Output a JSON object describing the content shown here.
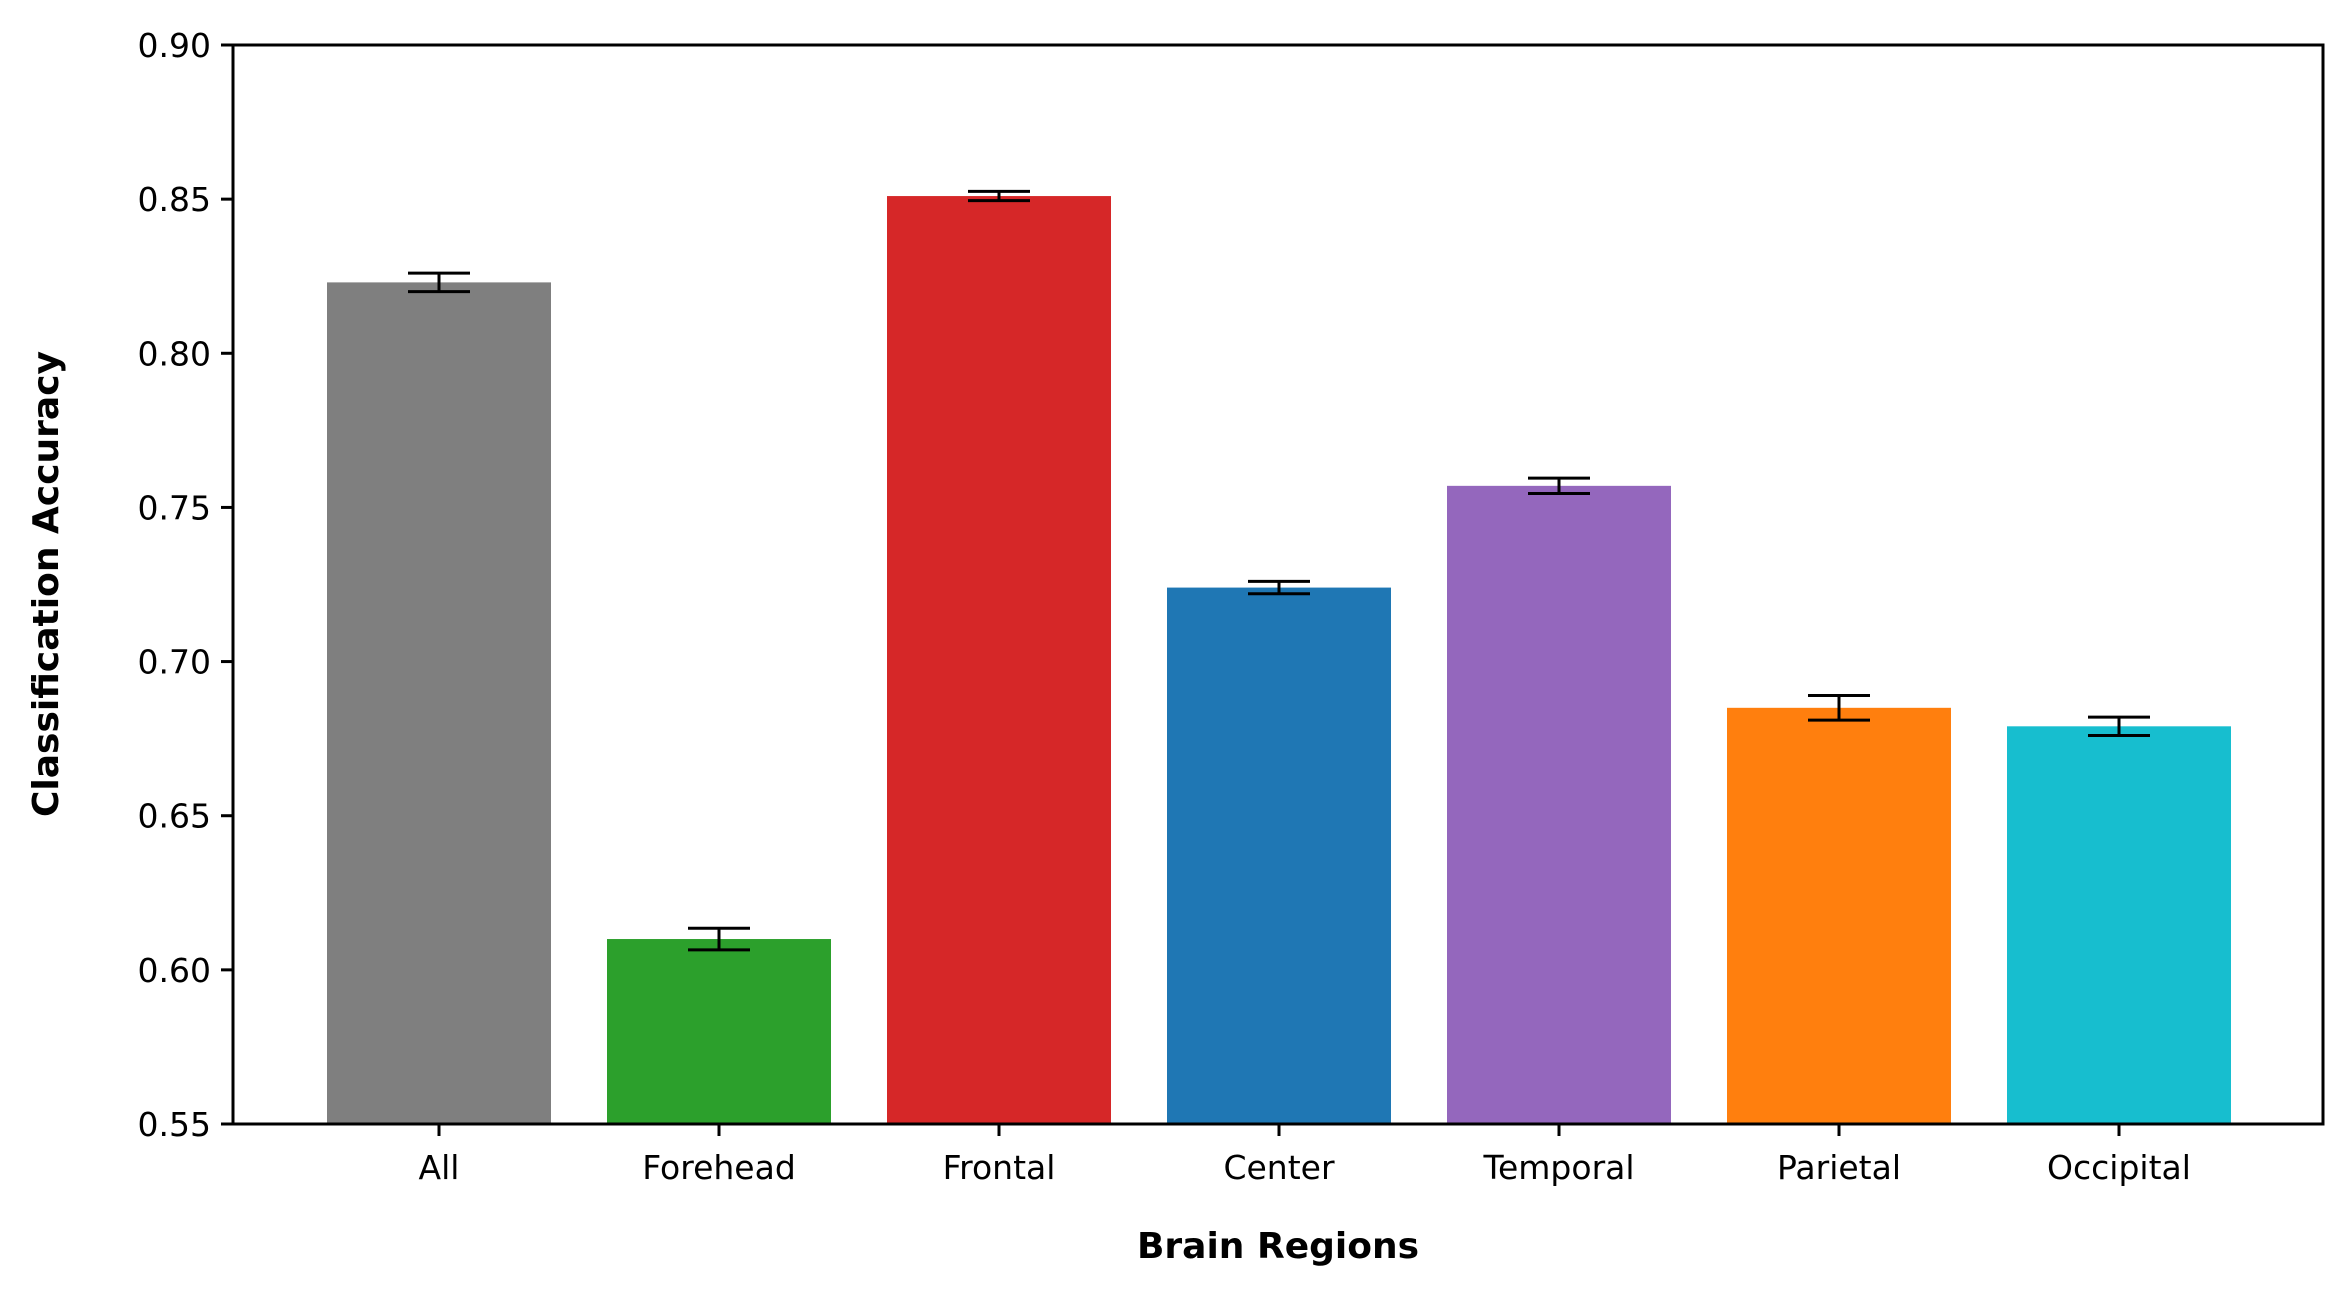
{
  "chart_data": {
    "type": "bar",
    "title": "",
    "xlabel": "Brain Regions",
    "ylabel": "Classification Accuracy",
    "categories": [
      "All",
      "Forehead",
      "Frontal",
      "Center",
      "Temporal",
      "Parietal",
      "Occipital"
    ],
    "values": [
      0.823,
      0.61,
      0.851,
      0.724,
      0.757,
      0.685,
      0.679
    ],
    "errors": [
      0.003,
      0.0035,
      0.0015,
      0.002,
      0.0025,
      0.004,
      0.003
    ],
    "colors": [
      "#7f7f7f",
      "#2ca02c",
      "#d62728",
      "#1f77b4",
      "#9467bd",
      "#ff7f0e",
      "#17becf"
    ],
    "ylim": [
      0.55,
      0.9
    ],
    "yticks": [
      "0.55",
      "0.60",
      "0.65",
      "0.70",
      "0.75",
      "0.80",
      "0.85",
      "0.90"
    ],
    "grid": false,
    "legend": false
  }
}
